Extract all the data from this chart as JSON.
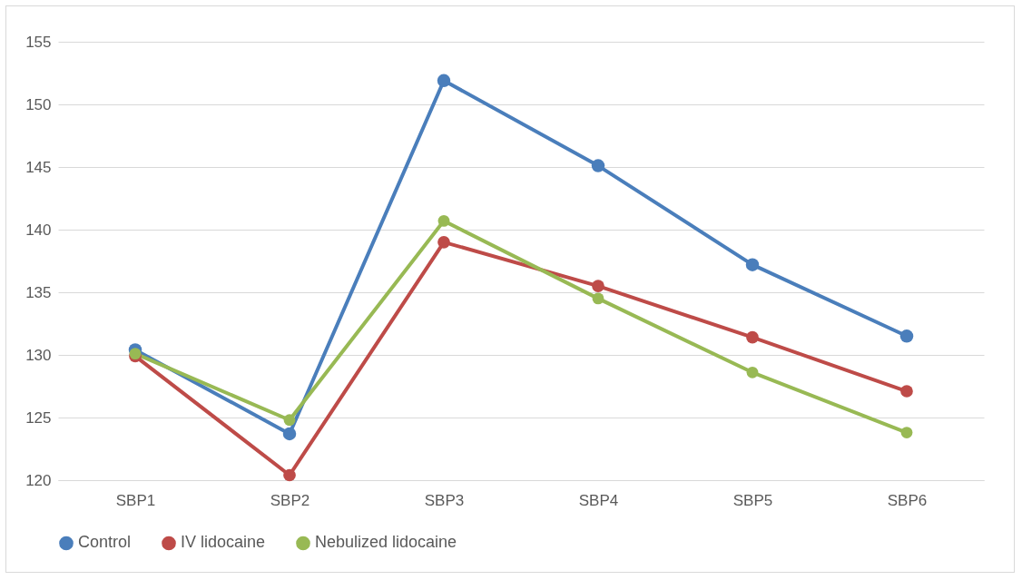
{
  "chart_data": {
    "type": "line",
    "categories": [
      "SBP1",
      "SBP2",
      "SBP3",
      "SBP4",
      "SBP5",
      "SBP6"
    ],
    "series": [
      {
        "name": "Control",
        "color": "#4a7ebb",
        "values": [
          130.4,
          123.7,
          151.9,
          145.1,
          137.2,
          131.5
        ]
      },
      {
        "name": "IV lidocaine",
        "color": "#be4b48",
        "values": [
          129.9,
          120.4,
          139.0,
          135.5,
          131.4,
          127.1
        ]
      },
      {
        "name": "Nebulized lidocaine",
        "color": "#98b954",
        "values": [
          130.1,
          124.8,
          140.7,
          134.5,
          128.6,
          123.8
        ]
      }
    ],
    "ylim": [
      120,
      155
    ],
    "yticks": [
      120,
      125,
      130,
      135,
      140,
      145,
      150,
      155
    ],
    "grid": "y",
    "legend": "bottom",
    "marker": "circle",
    "line_style": "solid"
  }
}
